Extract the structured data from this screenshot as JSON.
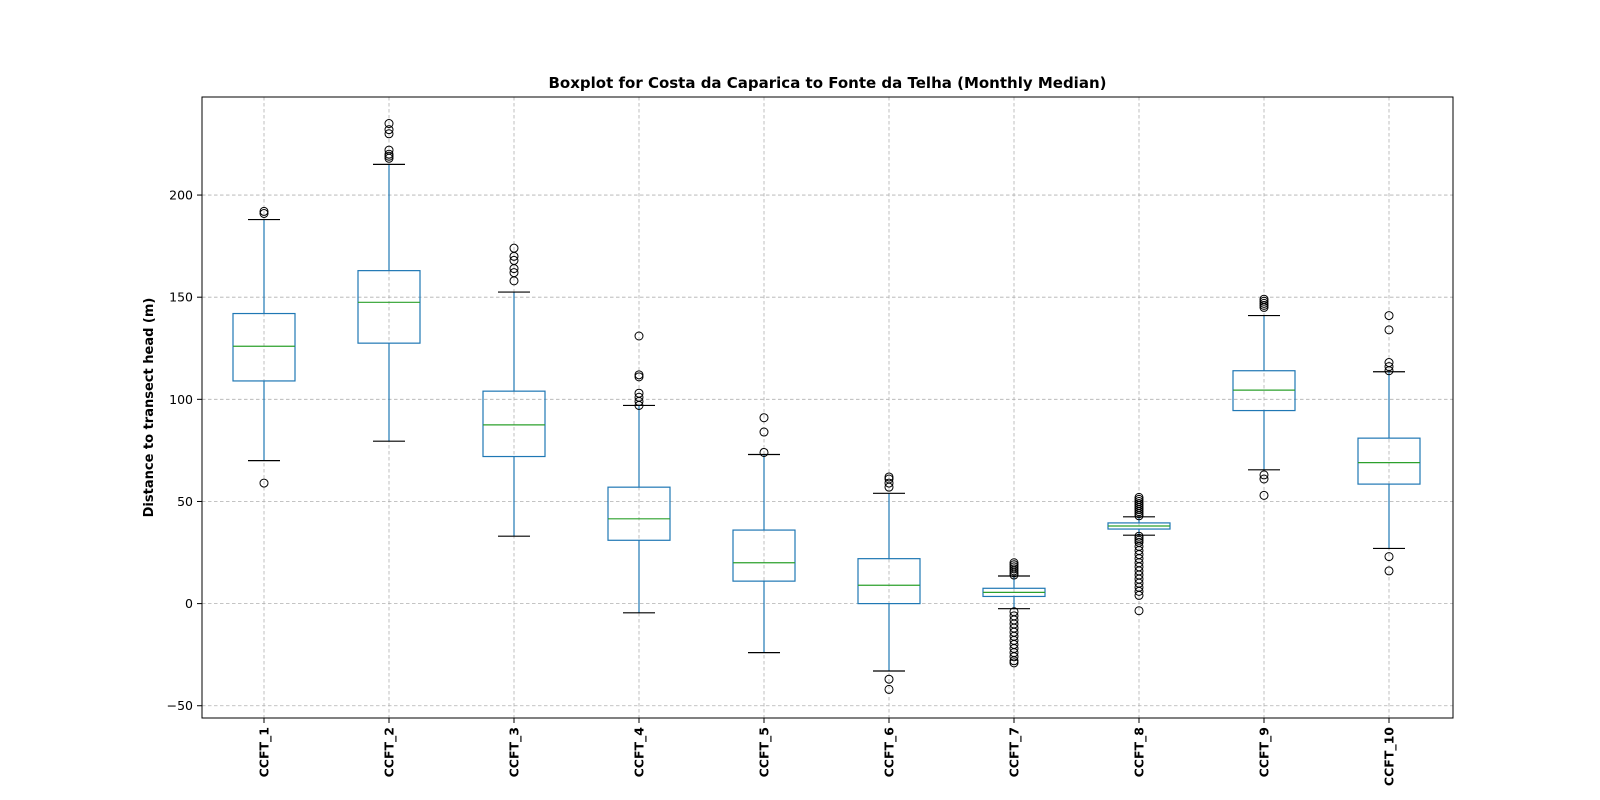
{
  "chart_data": {
    "type": "boxplot",
    "title": "Boxplot for Costa da Caparica to Fonte da Telha (Monthly Median)",
    "xlabel": "",
    "ylabel": "Distance to transect head (m)",
    "ylim": [
      -56,
      248
    ],
    "yticks": [
      -50,
      0,
      50,
      100,
      150,
      200
    ],
    "grid": true,
    "colors": {
      "box": "#1f77b4",
      "median": "#2ca02c",
      "cap": "#000000",
      "flier": "#000000",
      "grid": "#b0b0b0"
    },
    "categories": [
      "CCFT_1",
      "CCFT_2",
      "CCFT_3",
      "CCFT_4",
      "CCFT_5",
      "CCFT_6",
      "CCFT_7",
      "CCFT_8",
      "CCFT_9",
      "CCFT_10"
    ],
    "boxes": [
      {
        "name": "CCFT_1",
        "whisker_low": 70,
        "q1": 109,
        "median": 126,
        "q3": 142,
        "whisker_high": 188,
        "fliers": [
          59,
          191,
          192
        ]
      },
      {
        "name": "CCFT_2",
        "whisker_low": 79.5,
        "q1": 127.5,
        "median": 147.5,
        "q3": 163,
        "whisker_high": 215,
        "fliers": [
          218,
          219,
          220,
          222,
          230,
          232,
          235
        ]
      },
      {
        "name": "CCFT_3",
        "whisker_low": 33,
        "q1": 72,
        "median": 87.5,
        "q3": 104,
        "whisker_high": 152.5,
        "fliers": [
          158,
          162,
          164,
          168,
          170,
          174
        ]
      },
      {
        "name": "CCFT_4",
        "whisker_low": -4.5,
        "q1": 31,
        "median": 41.5,
        "q3": 57,
        "whisker_high": 97,
        "fliers": [
          97,
          99,
          101,
          103,
          111,
          112,
          131
        ]
      },
      {
        "name": "CCFT_5",
        "whisker_low": -24,
        "q1": 11,
        "median": 20,
        "q3": 36,
        "whisker_high": 73,
        "fliers": [
          74,
          84,
          91
        ]
      },
      {
        "name": "CCFT_6",
        "whisker_low": -33,
        "q1": 0,
        "median": 9,
        "q3": 22,
        "whisker_high": 54,
        "fliers": [
          -42,
          -37,
          57,
          59,
          61,
          62
        ]
      },
      {
        "name": "CCFT_7",
        "whisker_low": -2.5,
        "q1": 3.5,
        "median": 5.5,
        "q3": 7.5,
        "whisker_high": 13.5,
        "fliers": [
          -29,
          -28,
          -26,
          -24,
          -22,
          -20,
          -18,
          -16,
          -14,
          -12,
          -10,
          -8,
          -6,
          -4,
          14,
          15,
          16,
          17,
          18,
          19,
          20
        ]
      },
      {
        "name": "CCFT_8",
        "whisker_low": 33.5,
        "q1": 36.5,
        "median": 38,
        "q3": 39.5,
        "whisker_high": 42.5,
        "fliers": [
          -3.5,
          4,
          6,
          8,
          10,
          12,
          14,
          16,
          18,
          20,
          22,
          24,
          26,
          28,
          30,
          31,
          32,
          33,
          43,
          44,
          45,
          46,
          47,
          48,
          49,
          50,
          51,
          52
        ]
      },
      {
        "name": "CCFT_9",
        "whisker_low": 65.5,
        "q1": 94.5,
        "median": 104.5,
        "q3": 114,
        "whisker_high": 141,
        "fliers": [
          53,
          61,
          63,
          145,
          146,
          147,
          148,
          149
        ]
      },
      {
        "name": "CCFT_10",
        "whisker_low": 27,
        "q1": 58.5,
        "median": 69,
        "q3": 81,
        "whisker_high": 113.5,
        "fliers": [
          16,
          23,
          114,
          116,
          118,
          134,
          141
        ]
      }
    ]
  }
}
